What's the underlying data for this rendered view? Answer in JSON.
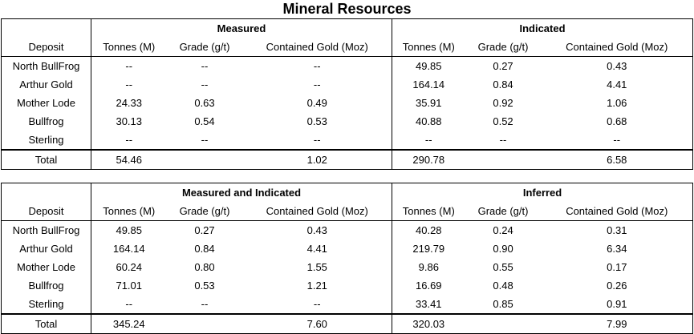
{
  "title": "Mineral Resources",
  "table1": {
    "group_left": "Measured",
    "group_right": "Indicated",
    "headers": [
      "Deposit",
      "Tonnes (M)",
      "Grade (g/t)",
      "Contained Gold (Moz)",
      "Tonnes (M)",
      "Grade (g/t)",
      "Contained Gold (Moz)"
    ],
    "rows": [
      [
        "North BullFrog",
        "--",
        "--",
        "--",
        "49.85",
        "0.27",
        "0.43"
      ],
      [
        "Arthur Gold",
        "--",
        "--",
        "--",
        "164.14",
        "0.84",
        "4.41"
      ],
      [
        "Mother Lode",
        "24.33",
        "0.63",
        "0.49",
        "35.91",
        "0.92",
        "1.06"
      ],
      [
        "Bullfrog",
        "30.13",
        "0.54",
        "0.53",
        "40.88",
        "0.52",
        "0.68"
      ],
      [
        "Sterling",
        "--",
        "--",
        "--",
        "--",
        "--",
        "--"
      ]
    ],
    "total": [
      "Total",
      "54.46",
      "",
      "1.02",
      "290.78",
      "",
      "6.58"
    ]
  },
  "table2": {
    "group_left": "Measured and Indicated",
    "group_right": "Inferred",
    "headers": [
      "Deposit",
      "Tonnes (M)",
      "Grade (g/t)",
      "Contained Gold (Moz)",
      "Tonnes (M)",
      "Grade (g/t)",
      "Contained Gold (Moz)"
    ],
    "rows": [
      [
        "North BullFrog",
        "49.85",
        "0.27",
        "0.43",
        "40.28",
        "0.24",
        "0.31"
      ],
      [
        "Arthur Gold",
        "164.14",
        "0.84",
        "4.41",
        "219.79",
        "0.90",
        "6.34"
      ],
      [
        "Mother Lode",
        "60.24",
        "0.80",
        "1.55",
        "9.86",
        "0.55",
        "0.17"
      ],
      [
        "Bullfrog",
        "71.01",
        "0.53",
        "1.21",
        "16.69",
        "0.48",
        "0.26"
      ],
      [
        "Sterling",
        "--",
        "--",
        "--",
        "33.41",
        "0.85",
        "0.91"
      ]
    ],
    "total": [
      "Total",
      "345.24",
      "",
      "7.60",
      "320.03",
      "",
      "7.99"
    ]
  }
}
